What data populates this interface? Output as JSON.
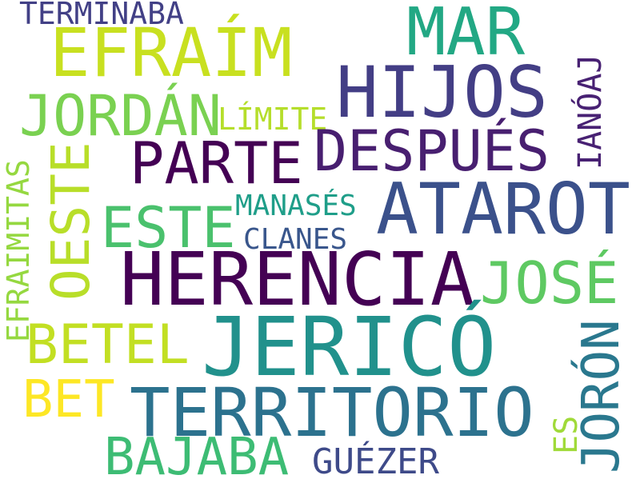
{
  "words": {
    "terminaba": {
      "text": "TERMINABA",
      "color": "#424086"
    },
    "efraim": {
      "text": "EFRAÍM",
      "color": "#c8e020"
    },
    "mar": {
      "text": "MAR",
      "color": "#22a884"
    },
    "hijos": {
      "text": "HIJOS",
      "color": "#433e85"
    },
    "jordan": {
      "text": "JORDÁN",
      "color": "#7ad151"
    },
    "limite": {
      "text": "LÍMITE",
      "color": "#b5de2b"
    },
    "ianoaj": {
      "text": "IANÓAJ",
      "color": "#482173"
    },
    "despues": {
      "text": "DESPUÉS",
      "color": "#481f70"
    },
    "parte": {
      "text": "PARTE",
      "color": "#440154"
    },
    "efraimitas": {
      "text": "EFRAIMITAS",
      "color": "#95d840"
    },
    "oeste": {
      "text": "OESTE",
      "color": "#b8de29"
    },
    "ataroth": {
      "text": "ATAROT",
      "color": "#3b518b"
    },
    "manases": {
      "text": "MANASÉS",
      "color": "#1f9e89"
    },
    "este": {
      "text": "ESTE",
      "color": "#4ac16d"
    },
    "clanes": {
      "text": "CLANES",
      "color": "#39568c"
    },
    "herencia": {
      "text": "HERENCIA",
      "color": "#440154"
    },
    "jose": {
      "text": "JOSÉ",
      "color": "#5ec962"
    },
    "betel": {
      "text": "BETEL",
      "color": "#c2df23"
    },
    "jerico": {
      "text": "JERICÓ",
      "color": "#21918c"
    },
    "joron": {
      "text": "JORÓN",
      "color": "#2a788e"
    },
    "bet": {
      "text": "BET",
      "color": "#fde725"
    },
    "territorio": {
      "text": "TERRITORIO",
      "color": "#2c728e"
    },
    "es": {
      "text": "ES",
      "color": "#a0da39"
    },
    "bajaba": {
      "text": "BAJABA",
      "color": "#3dbc74"
    },
    "guezer": {
      "text": "GUÉZER",
      "color": "#3e4a89"
    }
  }
}
